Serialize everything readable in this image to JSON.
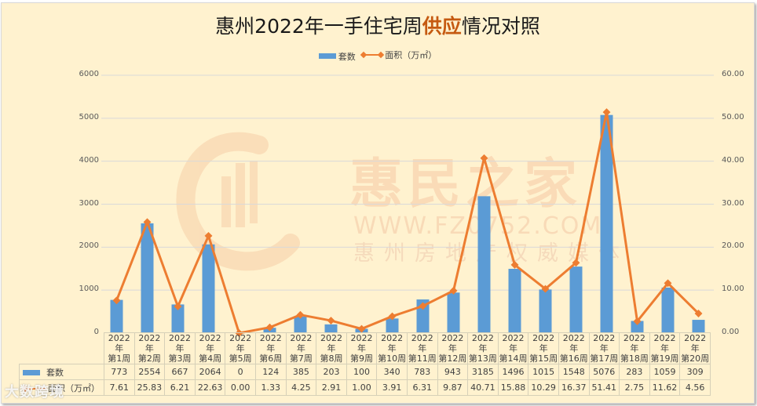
{
  "chart_data": {
    "type": "bar+line",
    "title": "惠州2022年一手住宅周供应情况对照",
    "title_highlight": "供应",
    "categories": [
      "2022年第1周",
      "2022年第2周",
      "2022年第3周",
      "2022年第4周",
      "2022年第5周",
      "2022年第6周",
      "2022年第7周",
      "2022年第8周",
      "2022年第9周",
      "2022年第10周",
      "2022年第11周",
      "2022年第12周",
      "2022年第13周",
      "2022年第14周",
      "2022年第15周",
      "2022年第16周",
      "2022年第17周",
      "2022年第18周",
      "2022年第19周",
      "2022年第20周"
    ],
    "category_lines": [
      [
        "2022年",
        "第1周"
      ],
      [
        "2022年",
        "第2周"
      ],
      [
        "2022年",
        "第3周"
      ],
      [
        "2022年",
        "第4周"
      ],
      [
        "2022年",
        "第5周"
      ],
      [
        "2022年",
        "第6周"
      ],
      [
        "2022年",
        "第7周"
      ],
      [
        "2022年",
        "第8周"
      ],
      [
        "2022年",
        "第9周"
      ],
      [
        "2022年",
        "第10周"
      ],
      [
        "2022年",
        "第11周"
      ],
      [
        "2022年",
        "第12周"
      ],
      [
        "2022年",
        "第13周"
      ],
      [
        "2022年",
        "第14周"
      ],
      [
        "2022年",
        "第15周"
      ],
      [
        "2022年",
        "第16周"
      ],
      [
        "2022年",
        "第17周"
      ],
      [
        "2022年",
        "第18周"
      ],
      [
        "2022年",
        "第19周"
      ],
      [
        "2022年",
        "第20周"
      ]
    ],
    "series": [
      {
        "name": "套数",
        "type": "bar",
        "axis": "left",
        "color": "#5b9bd5",
        "values": [
          773,
          2554,
          667,
          2064,
          0,
          124,
          385,
          203,
          100,
          340,
          783,
          943,
          3185,
          1496,
          1015,
          1548,
          5076,
          283,
          1059,
          309
        ]
      },
      {
        "name": "面积（万㎡）",
        "type": "line",
        "axis": "right",
        "color": "#ed7d31",
        "values": [
          7.61,
          25.83,
          6.21,
          22.63,
          0.0,
          1.33,
          4.25,
          2.91,
          1.0,
          3.91,
          6.31,
          9.87,
          40.71,
          15.88,
          10.29,
          16.37,
          51.41,
          2.75,
          11.62,
          4.56
        ]
      }
    ],
    "display_values": {
      "套数": [
        "773",
        "2554",
        "667",
        "2064",
        "0",
        "124",
        "385",
        "203",
        "100",
        "340",
        "783",
        "943",
        "3185",
        "1496",
        "1015",
        "1548",
        "5076",
        "283",
        "1059",
        "309"
      ],
      "面积（万㎡）": [
        "7.61",
        "25.83",
        "6.21",
        "22.63",
        "0.00",
        "1.33",
        "4.25",
        "2.91",
        "1.00",
        "3.91",
        "6.31",
        "9.87",
        "40.71",
        "15.88",
        "10.29",
        "16.37",
        "51.41",
        "2.75",
        "11.62",
        "4.56"
      ]
    },
    "y_left": {
      "ylim": [
        0,
        6000
      ],
      "ticks": [
        "0",
        "1000",
        "2000",
        "3000",
        "4000",
        "5000",
        "6000"
      ]
    },
    "y_right": {
      "ylim": [
        0,
        60
      ],
      "ticks": [
        "0.00",
        "10.00",
        "20.00",
        "30.00",
        "40.00",
        "50.00",
        "60.00"
      ]
    },
    "xlabel": "",
    "ylabel": "",
    "grid": true,
    "legend_position": "top",
    "data_table": true
  },
  "legend": {
    "bar_label": "套数",
    "line_label": "面积（万㎡）"
  },
  "watermark": {
    "brand": "惠民之家",
    "url": "WWW.FZ0752.COM",
    "slogan": "惠州房地产权威媒体",
    "corner": "大数跨境"
  }
}
